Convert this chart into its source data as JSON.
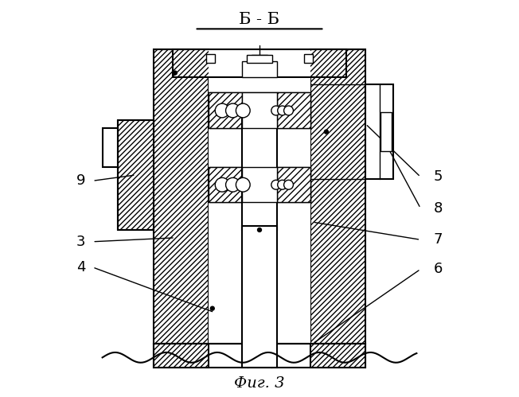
{
  "title": "Б - Б",
  "fig_label": "Фиг. 3",
  "background_color": "#ffffff",
  "line_color": "#000000",
  "figsize": [
    6.52,
    4.99
  ],
  "dpi": 100
}
